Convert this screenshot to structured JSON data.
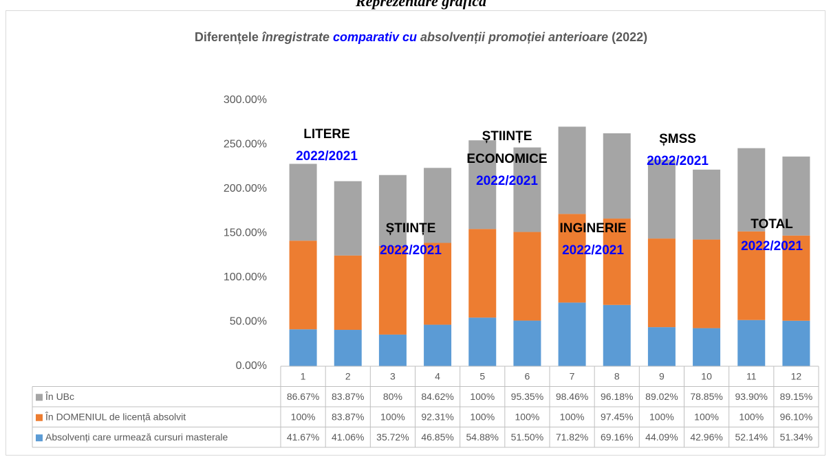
{
  "heading": "Reprezentare grafică",
  "chart_data": {
    "type": "stacked_bar",
    "title": [
      "Diferențele ",
      "înregistrate ",
      "comparativ cu ",
      "absolvenții promoției anterioare ",
      "(2022)"
    ],
    "categories": [
      "1",
      "2",
      "3",
      "4",
      "5",
      "6",
      "7",
      "8",
      "9",
      "10",
      "11",
      "12"
    ],
    "ylim": [
      0,
      300
    ],
    "yticks": [
      {
        "value": 0,
        "label": "0.00%"
      },
      {
        "value": 50,
        "label": "50.00%"
      },
      {
        "value": 100,
        "label": "100.00%"
      },
      {
        "value": 150,
        "label": "150.00%"
      },
      {
        "value": 200,
        "label": "200.00%"
      },
      {
        "value": 250,
        "label": "250.00%"
      },
      {
        "value": 300,
        "label": "300.00%"
      }
    ],
    "series": [
      {
        "name": "Absolvenți care urmează cursuri masterale",
        "color": "#5b9bd5",
        "values": [
          41.67,
          41.06,
          35.72,
          46.85,
          54.88,
          51.5,
          71.82,
          69.16,
          44.09,
          42.96,
          52.14,
          51.34
        ],
        "value_labels": [
          "41.67%",
          "41.06%",
          "35.72%",
          "46.85%",
          "54.88%",
          "51.50%",
          "71.82%",
          "69.16%",
          "44.09%",
          "42.96%",
          "52.14%",
          "51.34%"
        ]
      },
      {
        "name": "În DOMENIUL de licență absolvit",
        "color": "#ed7d31",
        "values": [
          100,
          83.87,
          100,
          92.31,
          100,
          100,
          100,
          97.45,
          100,
          100,
          100,
          96.1
        ],
        "value_labels": [
          "100%",
          "83.87%",
          "100%",
          "92.31%",
          "100%",
          "100%",
          "100%",
          "97.45%",
          "100%",
          "100%",
          "100%",
          "96.10%"
        ]
      },
      {
        "name": "În UBc",
        "color": "#a5a5a5",
        "values": [
          86.67,
          83.87,
          80,
          84.62,
          100,
          95.35,
          98.46,
          96.18,
          89.02,
          78.85,
          93.9,
          89.15
        ],
        "value_labels": [
          "86.67%",
          "83.87%",
          "80%",
          "84.62%",
          "100%",
          "95.35%",
          "98.46%",
          "96.18%",
          "89.02%",
          "78.85%",
          "93.90%",
          "89.15%"
        ]
      }
    ],
    "annotations": [
      {
        "lines": [
          "LITERE"
        ],
        "sub": "2022/2021"
      },
      {
        "lines": [
          "ȘTIINȚE"
        ],
        "sub": "2022/2021"
      },
      {
        "lines": [
          "ȘTIINȚE",
          "ECONOMICE"
        ],
        "sub": "2022/2021"
      },
      {
        "lines": [
          "INGINERIE"
        ],
        "sub": "2022/2021"
      },
      {
        "lines": [
          "ȘMSS"
        ],
        "sub": "2022/2021"
      },
      {
        "lines": [
          "TOTAL"
        ],
        "sub": "2022/2021"
      }
    ]
  }
}
